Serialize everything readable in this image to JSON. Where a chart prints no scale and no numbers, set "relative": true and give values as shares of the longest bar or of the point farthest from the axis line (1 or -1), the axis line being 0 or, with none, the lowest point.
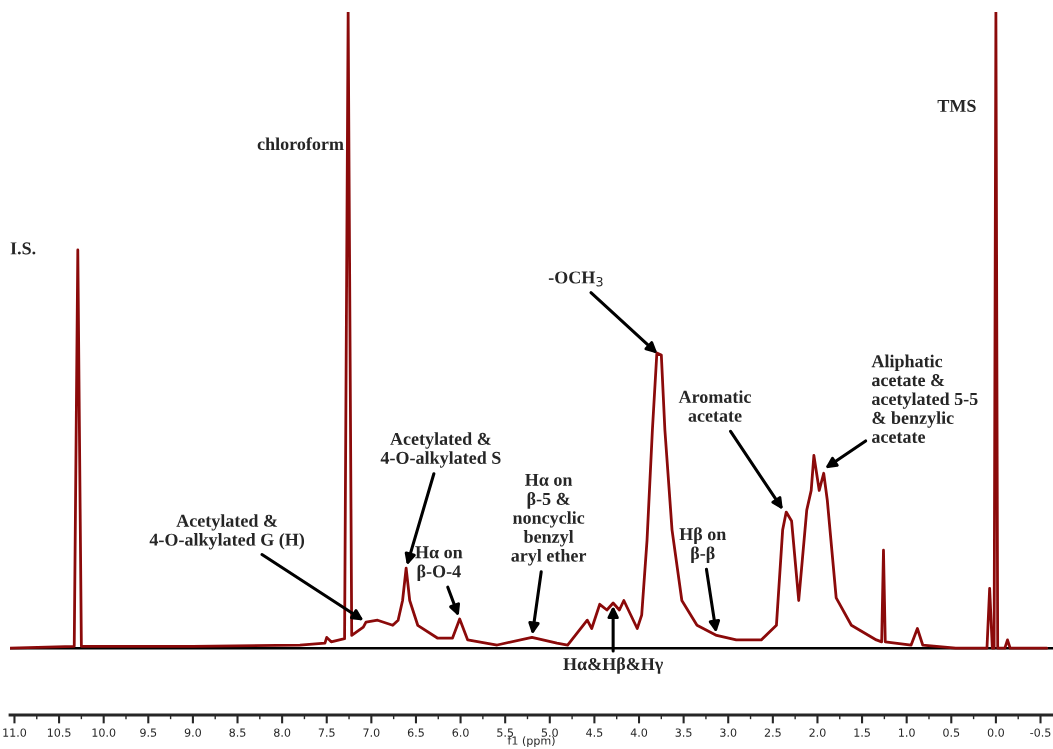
{
  "chart_data": {
    "type": "line",
    "relative": true,
    "xlabel": "f1 (ppm)",
    "xlim": [
      11.05,
      -0.64
    ],
    "xticks": [
      {
        "value": 11.0,
        "label": "11.0"
      },
      {
        "value": 10.5,
        "label": "10.5"
      },
      {
        "value": 10.0,
        "label": "10.0"
      },
      {
        "value": 9.5,
        "label": "9.5"
      },
      {
        "value": 9.0,
        "label": "9.0"
      },
      {
        "value": 8.5,
        "label": "8.5"
      },
      {
        "value": 8.0,
        "label": "8.0"
      },
      {
        "value": 7.5,
        "label": "7.5"
      },
      {
        "value": 7.0,
        "label": "7.0"
      },
      {
        "value": 6.5,
        "label": "6.5"
      },
      {
        "value": 6.0,
        "label": "6.0"
      },
      {
        "value": 5.5,
        "label": "5.5"
      },
      {
        "value": 5.0,
        "label": "5.0"
      },
      {
        "value": 4.5,
        "label": "4.5"
      },
      {
        "value": 4.0,
        "label": "4.0"
      },
      {
        "value": 3.5,
        "label": "3.5"
      },
      {
        "value": 3.0,
        "label": "3.0"
      },
      {
        "value": 2.5,
        "label": "2.5"
      },
      {
        "value": 2.0,
        "label": "2.0"
      },
      {
        "value": 1.5,
        "label": "1.5"
      },
      {
        "value": 1.0,
        "label": "1.0"
      },
      {
        "value": 0.5,
        "label": "0.5"
      },
      {
        "value": 0.0,
        "label": "0.0"
      },
      {
        "value": -0.5,
        "label": "-0.5"
      }
    ],
    "grid": false,
    "legend": false,
    "marker": "none",
    "line_style": "solid",
    "ref_lines": [
      {
        "axis": "y",
        "value": 0,
        "color": "#000000"
      }
    ],
    "series": [
      {
        "color": "#8b0a0a",
        "x": [
          11.05,
          10.33,
          10.29,
          10.25,
          9.0,
          7.8,
          7.52,
          7.5,
          7.45,
          7.3,
          7.26,
          7.22,
          7.09,
          7.06,
          6.93,
          6.76,
          6.7,
          6.65,
          6.61,
          6.57,
          6.48,
          6.26,
          6.09,
          6.01,
          5.92,
          5.59,
          5.2,
          4.92,
          4.8,
          4.58,
          4.53,
          4.44,
          4.36,
          4.29,
          4.22,
          4.17,
          4.02,
          3.97,
          3.91,
          3.85,
          3.8,
          3.75,
          3.71,
          3.63,
          3.52,
          3.35,
          3.13,
          2.91,
          2.63,
          2.46,
          2.39,
          2.35,
          2.29,
          2.21,
          2.17,
          2.12,
          2.07,
          2.04,
          1.98,
          1.93,
          1.89,
          1.79,
          1.62,
          1.34,
          1.28,
          1.26,
          1.24,
          0.95,
          0.88,
          0.82,
          0.45,
          0.1,
          0.07,
          0.04,
          0.02,
          0.0,
          -0.02,
          -0.1,
          -0.13,
          -0.16,
          -0.57
        ],
        "values": [
          0.0,
          0.003,
          0.626,
          0.003,
          0.003,
          0.005,
          0.008,
          0.017,
          0.01,
          0.015,
          1.0,
          0.02,
          0.033,
          0.041,
          0.044,
          0.036,
          0.044,
          0.075,
          0.126,
          0.075,
          0.036,
          0.016,
          0.016,
          0.046,
          0.013,
          0.005,
          0.017,
          0.008,
          0.005,
          0.044,
          0.031,
          0.069,
          0.06,
          0.071,
          0.06,
          0.075,
          0.031,
          0.052,
          0.17,
          0.343,
          0.464,
          0.461,
          0.343,
          0.186,
          0.075,
          0.036,
          0.02,
          0.013,
          0.013,
          0.036,
          0.186,
          0.214,
          0.2,
          0.075,
          0.138,
          0.217,
          0.248,
          0.303,
          0.248,
          0.275,
          0.233,
          0.079,
          0.036,
          0.013,
          0.01,
          0.154,
          0.01,
          0.005,
          0.031,
          0.005,
          0.0,
          0.0,
          0.094,
          0.0,
          0.0,
          1.0,
          0.0,
          0.0,
          0.013,
          0.0,
          0.0
        ]
      }
    ],
    "annotations": [
      {
        "text": "I.S.",
        "x": 10.29,
        "y": 0.626
      },
      {
        "text": "chloroform",
        "x": 7.26,
        "y": 0.79
      },
      {
        "text": "TMS",
        "x": 0.0,
        "y": 0.85
      },
      {
        "text": "Acetylated &\n4-O-alkylated G (H)",
        "x": 7.06,
        "y": 0.041
      },
      {
        "text": "Acetylated &\n4-O-alkylated S",
        "x": 6.61,
        "y": 0.126
      },
      {
        "text": "Hα on\nβ-O-4",
        "x": 6.01,
        "y": 0.046
      },
      {
        "text": "Hα on\nβ-5 &\nnoncyclic\nbenzyl\naryl ether",
        "x": 5.2,
        "y": 0.017
      },
      {
        "text": "Hα&Hβ&Hγ",
        "x": 4.29,
        "y": 0.071
      },
      {
        "text": "-OCH$_{3}$",
        "x": 3.77,
        "y": 0.46
      },
      {
        "text": "Hβ on\nβ-β",
        "x": 3.13,
        "y": 0.02
      },
      {
        "text": "Aromatic\nacetate",
        "x": 2.37,
        "y": 0.214
      },
      {
        "text": "Aliphatic\nacetate &\nacetylated 5-5\n& benzylic\nacetate",
        "x": 1.94,
        "y": 0.28
      }
    ]
  }
}
